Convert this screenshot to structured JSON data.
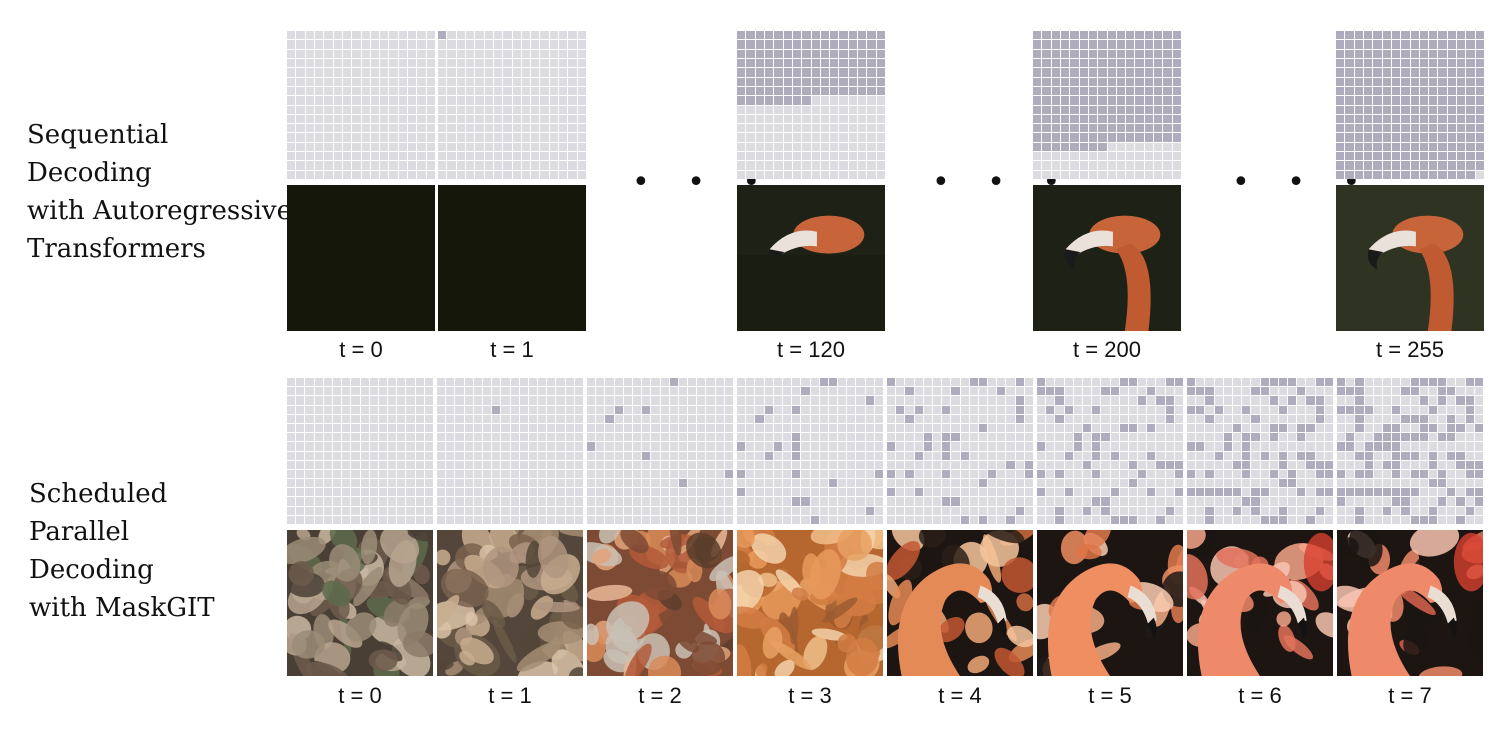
{
  "sequential": {
    "label_lines": [
      "Sequential",
      "Decoding",
      "with Autoregressive",
      "Transformers"
    ],
    "ellipsis": "• • •",
    "steps": [
      {
        "t": "t = 0",
        "decoded": 0,
        "image": "dark"
      },
      {
        "t": "t = 1",
        "decoded": 1,
        "image": "dark"
      },
      {
        "t": "t = 120",
        "decoded": 120,
        "image": "partial"
      },
      {
        "t": "t = 200",
        "decoded": 200,
        "image": "mostly"
      },
      {
        "t": "t = 255",
        "decoded": 255,
        "image": "full"
      }
    ]
  },
  "parallel": {
    "label_lines": [
      "Scheduled",
      "Parallel",
      "Decoding",
      "with MaskGIT"
    ],
    "steps": [
      {
        "t": "t = 0",
        "decoded": 0,
        "image": "noise"
      },
      {
        "t": "t = 1",
        "decoded": 1,
        "image": "noise2"
      },
      {
        "t": "t = 2",
        "decoded": 8,
        "image": "blob"
      },
      {
        "t": "t = 3",
        "decoded": 22,
        "image": "bird"
      },
      {
        "t": "t = 4",
        "decoded": 40,
        "image": "flamingo1"
      },
      {
        "t": "t = 5",
        "decoded": 62,
        "image": "flamingo2"
      },
      {
        "t": "t = 6",
        "decoded": 85,
        "image": "flamingo3"
      },
      {
        "t": "t = 7",
        "decoded": 110,
        "image": "flamingo3"
      }
    ]
  },
  "colors": {
    "masked": "#dcdbe2",
    "decoded": "#aeacbd"
  }
}
